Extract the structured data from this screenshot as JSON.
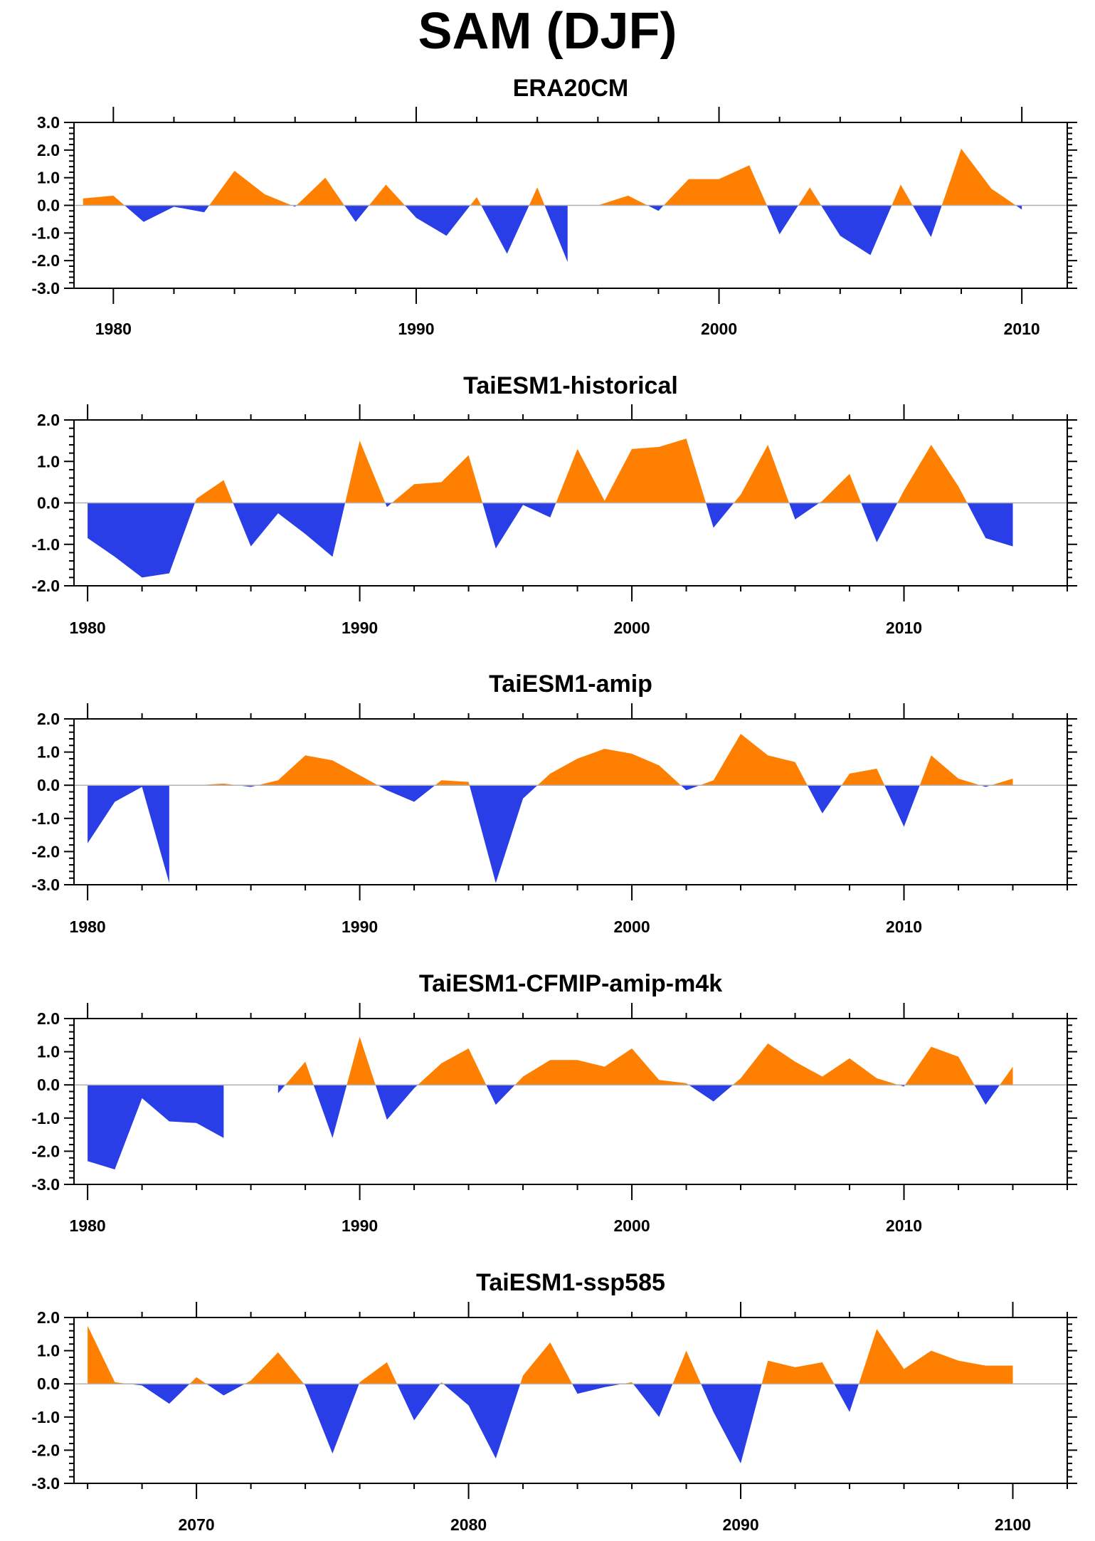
{
  "title": "SAM (DJF)",
  "colors": {
    "positive": "#ff8000",
    "negative": "#2a3ee8",
    "axis": "#000000",
    "zero_line": "#b0b0b0"
  },
  "chart_data": [
    {
      "type": "area",
      "title": "ERA20CM",
      "xlim": [
        1978.7,
        2011.5
      ],
      "ylim": [
        -3.0,
        3.0
      ],
      "yticks": [
        "3.0",
        "2.0",
        "1.0",
        "0.0",
        "-1.0",
        "-2.0",
        "-3.0"
      ],
      "yticks_values": [
        3,
        2,
        1,
        0,
        -1,
        -2,
        -3
      ],
      "xticks": [
        "1980",
        "1990",
        "2000",
        "2010"
      ],
      "xticks_values": [
        1980,
        1990,
        2000,
        2010
      ],
      "grid": false,
      "series": [
        {
          "x": [
            1979,
            1980,
            1981,
            1982,
            1983,
            1984,
            1985,
            1986,
            1987,
            1988,
            1989,
            1990,
            1991,
            1992,
            1993,
            1994,
            1995,
            1996,
            1997,
            1998,
            1999,
            2000,
            2001,
            2002,
            2003,
            2004,
            2005,
            2006,
            2007,
            2008,
            2009,
            2010
          ],
          "values": [
            0.25,
            0.35,
            -0.6,
            -0.05,
            -0.25,
            1.25,
            0.4,
            -0.05,
            1.0,
            -0.6,
            0.75,
            -0.45,
            -1.1,
            0.3,
            -1.75,
            0.65,
            -2.05,
            0.0,
            0.35,
            -0.2,
            0.95,
            0.95,
            1.45,
            -1.05,
            0.65,
            -1.1,
            -1.8,
            0.75,
            -1.15,
            2.05,
            0.6,
            -0.15
          ]
        }
      ]
    },
    {
      "type": "area",
      "title": "TaiESM1-historical",
      "xlim": [
        1979.5,
        2016.0
      ],
      "ylim": [
        -2.0,
        2.0
      ],
      "yticks": [
        "2.0",
        "1.0",
        "0.0",
        "-1.0",
        "-2.0"
      ],
      "yticks_values": [
        2,
        1,
        0,
        -1,
        -2
      ],
      "xticks": [
        "1980",
        "1990",
        "2000",
        "2010"
      ],
      "xticks_values": [
        1980,
        1990,
        2000,
        2010
      ],
      "grid": false,
      "series": [
        {
          "x": [
            1980,
            1981,
            1982,
            1983,
            1984,
            1985,
            1986,
            1987,
            1988,
            1989,
            1990,
            1991,
            1992,
            1993,
            1994,
            1995,
            1996,
            1997,
            1998,
            1999,
            2000,
            2001,
            2002,
            2003,
            2004,
            2005,
            2006,
            2007,
            2008,
            2009,
            2010,
            2011,
            2012,
            2013,
            2014
          ],
          "values": [
            -0.85,
            -1.3,
            -1.8,
            -1.7,
            0.1,
            0.55,
            -1.05,
            -0.25,
            -0.75,
            -1.3,
            1.5,
            -0.1,
            0.45,
            0.5,
            1.15,
            -1.1,
            -0.05,
            -0.35,
            1.3,
            0.05,
            1.3,
            1.35,
            1.55,
            -0.6,
            0.2,
            1.4,
            -0.4,
            0.05,
            0.7,
            -0.95,
            0.3,
            1.4,
            0.4,
            -0.85,
            -1.05
          ]
        }
      ]
    },
    {
      "type": "area",
      "title": "TaiESM1-amip",
      "xlim": [
        1979.5,
        2016.0
      ],
      "ylim": [
        -3.0,
        2.0
      ],
      "yticks": [
        "2.0",
        "1.0",
        "0.0",
        "-1.0",
        "-2.0",
        "-3.0"
      ],
      "yticks_values": [
        2,
        1,
        0,
        -1,
        -2,
        -3
      ],
      "xticks": [
        "1980",
        "1990",
        "2000",
        "2010"
      ],
      "xticks_values": [
        1980,
        1990,
        2000,
        2010
      ],
      "grid": false,
      "series": [
        {
          "x": [
            1980,
            1981,
            1982,
            1983,
            1984,
            1985,
            1986,
            1987,
            1988,
            1989,
            1990,
            1991,
            1992,
            1993,
            1994,
            1995,
            1996,
            1997,
            1998,
            1999,
            2000,
            2001,
            2002,
            2003,
            2004,
            2005,
            2006,
            2007,
            2008,
            2009,
            2010,
            2011,
            2012,
            2013,
            2014
          ],
          "values": [
            -1.75,
            -0.5,
            -0.05,
            -2.95,
            0.0,
            0.05,
            -0.05,
            0.15,
            0.9,
            0.75,
            0.3,
            -0.15,
            -0.5,
            0.15,
            0.1,
            -2.95,
            -0.4,
            0.35,
            0.8,
            1.1,
            0.95,
            0.6,
            -0.15,
            0.15,
            1.55,
            0.9,
            0.7,
            -0.85,
            0.35,
            0.5,
            -1.25,
            0.9,
            0.2,
            -0.05,
            0.2
          ]
        }
      ]
    },
    {
      "type": "area",
      "title": "TaiESM1-CFMIP-amip-m4k",
      "xlim": [
        1979.5,
        2016.0
      ],
      "ylim": [
        -3.0,
        2.0
      ],
      "yticks": [
        "2.0",
        "1.0",
        "0.0",
        "-1.0",
        "-2.0",
        "-3.0"
      ],
      "yticks_values": [
        2,
        1,
        0,
        -1,
        -2,
        -3
      ],
      "xticks": [
        "1980",
        "1990",
        "2000",
        "2010"
      ],
      "xticks_values": [
        1980,
        1990,
        2000,
        2010
      ],
      "grid": false,
      "series": [
        {
          "x": [
            1980,
            1981,
            1982,
            1983,
            1984,
            1985,
            1986,
            1987,
            1988,
            1989,
            1990,
            1991,
            1992,
            1993,
            1994,
            1995,
            1996,
            1997,
            1998,
            1999,
            2000,
            2001,
            2002,
            2003,
            2004,
            2005,
            2006,
            2007,
            2008,
            2009,
            2010,
            2011,
            2012,
            2013,
            2014
          ],
          "values": [
            -2.3,
            -2.55,
            -0.4,
            -1.1,
            -1.15,
            -1.6,
            0.0,
            -0.25,
            0.7,
            -1.6,
            1.45,
            -1.05,
            -0.1,
            0.65,
            1.1,
            -0.6,
            0.25,
            0.75,
            0.75,
            0.55,
            1.1,
            0.15,
            0.05,
            -0.5,
            0.2,
            1.25,
            0.7,
            0.25,
            0.8,
            0.2,
            -0.05,
            1.15,
            0.85,
            -0.6,
            0.55
          ]
        }
      ]
    },
    {
      "type": "area",
      "title": "TaiESM1-ssp585",
      "xlim": [
        2065.5,
        2102.0
      ],
      "ylim": [
        -3.0,
        2.0
      ],
      "yticks": [
        "2.0",
        "1.0",
        "0.0",
        "-1.0",
        "-2.0",
        "-3.0"
      ],
      "yticks_values": [
        2,
        1,
        0,
        -1,
        -2,
        -3
      ],
      "xticks": [
        "2070",
        "2080",
        "2090",
        "2100"
      ],
      "xticks_values": [
        2070,
        2080,
        2090,
        2100
      ],
      "grid": false,
      "series": [
        {
          "x": [
            2066,
            2067,
            2068,
            2069,
            2070,
            2071,
            2072,
            2073,
            2074,
            2075,
            2076,
            2077,
            2078,
            2079,
            2080,
            2081,
            2082,
            2083,
            2084,
            2085,
            2086,
            2087,
            2088,
            2089,
            2090,
            2091,
            2092,
            2093,
            2094,
            2095,
            2096,
            2097,
            2098,
            2099,
            2100
          ],
          "values": [
            1.75,
            0.05,
            -0.05,
            -0.6,
            0.2,
            -0.35,
            0.1,
            0.95,
            -0.05,
            -2.1,
            0.05,
            0.65,
            -1.1,
            0.05,
            -0.65,
            -2.25,
            0.25,
            1.25,
            -0.3,
            -0.1,
            0.05,
            -1.0,
            1.0,
            -0.85,
            -2.4,
            0.7,
            0.5,
            0.65,
            -0.85,
            1.65,
            0.45,
            1.0,
            0.7,
            0.55,
            0.55
          ]
        }
      ]
    }
  ]
}
